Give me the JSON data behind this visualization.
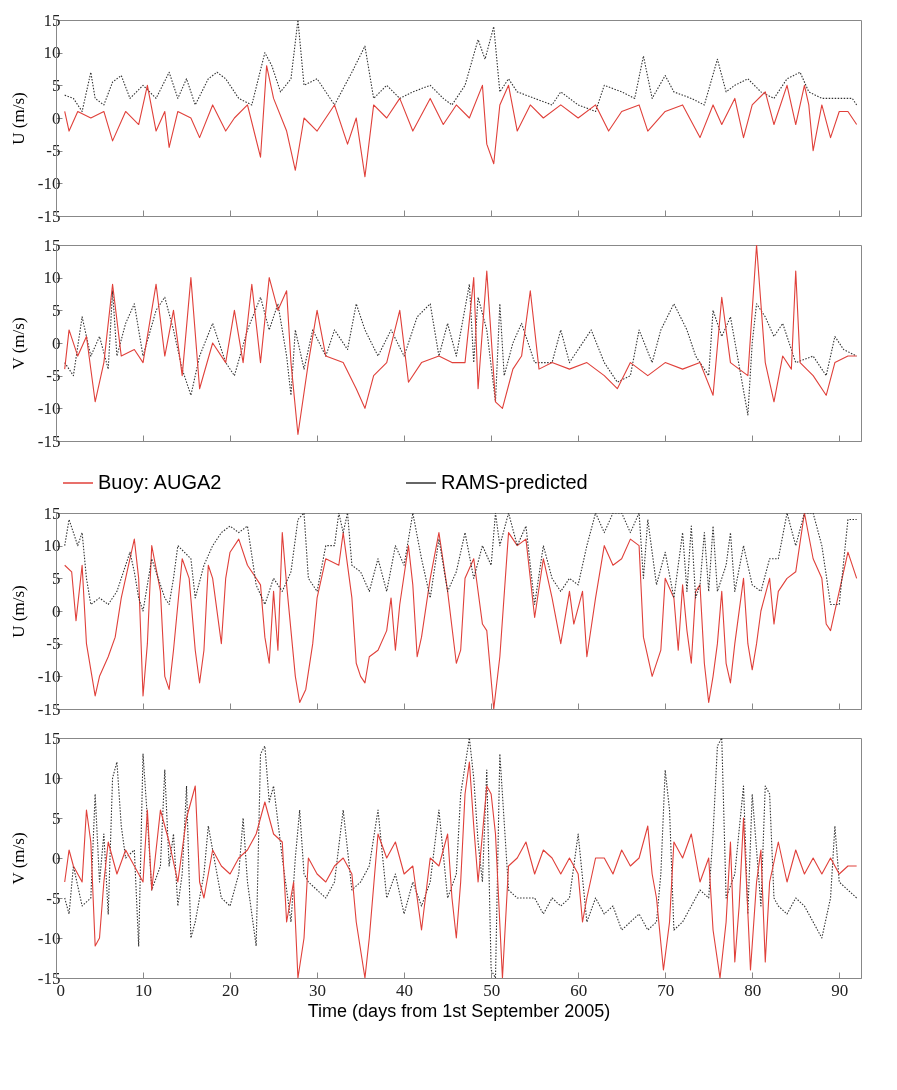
{
  "chart_data": [
    {
      "type": "line",
      "ylabel": "U (m/s)",
      "xlim": [
        0,
        92.5
      ],
      "xticks": [
        0,
        10,
        20,
        30,
        40,
        50,
        60,
        70,
        80,
        90
      ],
      "ylim": [
        -15,
        15
      ],
      "yticks": [
        -15,
        -10,
        -5,
        0,
        5,
        10,
        15
      ],
      "tick_labels": "y",
      "series": [
        {
          "color": "#333333",
          "line_style": "dotted",
          "x": [
            1,
            2,
            3,
            4,
            4.5,
            5.5,
            6.5,
            7.5,
            8.5,
            10,
            11.5,
            13,
            14,
            15,
            16,
            17.5,
            18.5,
            19.5,
            21,
            22.5,
            24,
            24.8,
            25.8,
            27,
            27.8,
            28.5,
            30,
            31,
            32,
            34,
            35.5,
            36.5,
            38,
            39.5,
            41,
            43,
            44.5,
            45.5,
            47,
            48.5,
            49.3,
            50.3,
            51,
            52,
            53,
            55,
            57,
            58,
            60,
            62,
            63,
            65,
            66.5,
            67.5,
            68.5,
            70,
            71,
            73,
            74.5,
            76,
            77,
            78,
            79.5,
            81,
            82.5,
            84,
            85.5,
            86.5,
            88,
            90,
            91.5,
            92
          ],
          "values": [
            3.5,
            3,
            1,
            7,
            3,
            2,
            5.5,
            6.5,
            3,
            5,
            3,
            7,
            3,
            6,
            2,
            6,
            7,
            6,
            3,
            2,
            10,
            8,
            4,
            6,
            15,
            5,
            6,
            4,
            2,
            7,
            11,
            3,
            5,
            3,
            4,
            5,
            3,
            2,
            5,
            12,
            9,
            14,
            4,
            6,
            4,
            3,
            2,
            4,
            2,
            1,
            5,
            4,
            3,
            9.5,
            3,
            6.5,
            4,
            3,
            2,
            9,
            4,
            5,
            6,
            4,
            3,
            6,
            7,
            4,
            3,
            3,
            3,
            2
          ]
        },
        {
          "color": "#e0403a",
          "line_style": "solid",
          "x": [
            1,
            1.5,
            2.5,
            4,
            5.5,
            6.5,
            8,
            9.5,
            10.5,
            11.5,
            12.5,
            13,
            14,
            15.5,
            16.5,
            18,
            19.5,
            20.5,
            22,
            23.5,
            24.2,
            25,
            26.5,
            27.5,
            28.5,
            30,
            32,
            33.5,
            34.5,
            35.5,
            36.5,
            38,
            39.5,
            41,
            43,
            44.5,
            46,
            47.5,
            49,
            49.5,
            50.3,
            51,
            52,
            53,
            54.5,
            56,
            58,
            60,
            62,
            63.5,
            65,
            67,
            68,
            70,
            72,
            74,
            75.5,
            76.5,
            78,
            79,
            80,
            81.5,
            82.5,
            84,
            85,
            86,
            86.5,
            87,
            88,
            89,
            90,
            91,
            92
          ],
          "values": [
            1,
            -2,
            1,
            0,
            1,
            -3.5,
            1,
            -1,
            5,
            -2,
            1,
            -4.5,
            1,
            0,
            -3,
            2,
            -2,
            0,
            2,
            -6,
            8,
            3,
            -2,
            -8,
            0,
            -2,
            2,
            -4,
            0,
            -9,
            2,
            0,
            3,
            -2,
            3,
            -1,
            2,
            0,
            5,
            -4,
            -7,
            2,
            5,
            -2,
            2,
            0,
            2,
            0,
            2,
            -2,
            1,
            2,
            -2,
            1,
            2,
            -3,
            2,
            -1,
            3,
            -3,
            2,
            4,
            -1,
            5,
            -1,
            5,
            2,
            -5,
            2,
            -3,
            1,
            1,
            -1
          ]
        }
      ]
    },
    {
      "type": "line",
      "ylabel": "V (m/s)",
      "xlim": [
        0,
        92.5
      ],
      "xticks": [
        0,
        10,
        20,
        30,
        40,
        50,
        60,
        70,
        80,
        90
      ],
      "ylim": [
        -15,
        15
      ],
      "yticks": [
        -15,
        -10,
        -5,
        0,
        5,
        10,
        15
      ],
      "tick_labels": "y",
      "series": [
        {
          "color": "#333333",
          "line_style": "dotted",
          "x": [
            1,
            2,
            3,
            4,
            5,
            6,
            6.5,
            7,
            8,
            9,
            10,
            11.5,
            12.5,
            13.5,
            14.5,
            15.5,
            16.5,
            18,
            19.5,
            20.5,
            22,
            23.5,
            24.5,
            25.5,
            26.5,
            27,
            27.5,
            28.5,
            29.5,
            31,
            32,
            33.5,
            34.5,
            35.5,
            37,
            38.5,
            40,
            41.5,
            43,
            44,
            45,
            46,
            47.5,
            48,
            48.5,
            49.5,
            50.5,
            51,
            51.5,
            52.5,
            53.5,
            55,
            57,
            58,
            59,
            60,
            61.5,
            63,
            64.5,
            66,
            67,
            68.5,
            69.5,
            71,
            72.5,
            73.5,
            75,
            75.5,
            76.5,
            77.5,
            79.5,
            80,
            80.5,
            81.5,
            82.5,
            83.5,
            85,
            87,
            88.5,
            89.5,
            90.5,
            92
          ],
          "values": [
            -3,
            -5,
            4,
            -2,
            1,
            -4,
            8,
            -2,
            3,
            6,
            -2,
            5,
            7,
            2,
            -4,
            -8,
            -2,
            3,
            -3,
            -5,
            2,
            7,
            2,
            6,
            -2,
            -8,
            2,
            -4,
            2,
            -2,
            2,
            -1,
            6,
            2,
            -2,
            2,
            -2,
            4,
            6,
            -2,
            3,
            -2,
            9,
            -3,
            7,
            2,
            -9,
            6,
            -5,
            0,
            3,
            -3,
            -3,
            2,
            -3,
            -1,
            2,
            -3,
            -6,
            -5,
            2,
            -3,
            2,
            6,
            2,
            -2,
            -5,
            5,
            1,
            4,
            -11,
            0,
            6,
            4,
            1,
            3,
            -3,
            -2,
            -5,
            1,
            -1,
            -2
          ]
        },
        {
          "color": "#e0403a",
          "line_style": "solid",
          "x": [
            1,
            1.5,
            2.5,
            3.5,
            4.5,
            5.5,
            6.5,
            7.5,
            9,
            10,
            11.5,
            12.5,
            13.5,
            14.5,
            15.5,
            16.5,
            18,
            19.5,
            20.5,
            21.5,
            22.5,
            23.5,
            24.5,
            25.5,
            26.5,
            27,
            27.8,
            29,
            30,
            31,
            33,
            34.5,
            35.5,
            36.5,
            38,
            39.5,
            40.5,
            42,
            44,
            45.5,
            47,
            48,
            48.5,
            49.5,
            50.5,
            51.3,
            52.5,
            53.5,
            54.5,
            55.5,
            57,
            59,
            61,
            63,
            64.5,
            66,
            68,
            70,
            72,
            74,
            75.5,
            76.5,
            77.5,
            79.5,
            80.5,
            81.5,
            82.5,
            83.5,
            84.5,
            85,
            85.5,
            87,
            88.5,
            89.5,
            91,
            92
          ],
          "values": [
            -4,
            2,
            -2,
            1,
            -9,
            -3,
            9,
            -2,
            -1,
            -3,
            9,
            -2,
            5,
            -5,
            10,
            -7,
            0,
            -3,
            5,
            -3,
            9,
            -3,
            10,
            5,
            8,
            -3,
            -14,
            -3,
            5,
            -2,
            -3,
            -7,
            -10,
            -5,
            -3,
            5,
            -6,
            -3,
            -2,
            -3,
            -3,
            10,
            -7,
            11,
            -9,
            -10,
            -4,
            -2,
            8,
            -4,
            -3,
            -4,
            -3,
            -5,
            -7,
            -3,
            -5,
            -3,
            -4,
            -3,
            -8,
            7,
            -3,
            -5,
            15,
            -3,
            -9,
            -2,
            -4,
            11,
            -3,
            -5,
            -8,
            -3,
            -2,
            -2
          ]
        }
      ]
    },
    {
      "type": "line",
      "ylabel": "U (m/s)",
      "xlim": [
        0,
        92.5
      ],
      "xticks": [
        0,
        10,
        20,
        30,
        40,
        50,
        60,
        70,
        80,
        90
      ],
      "ylim": [
        -15,
        15
      ],
      "yticks": [
        -15,
        -10,
        -5,
        0,
        5,
        10,
        15
      ],
      "tick_labels": "y",
      "legend": "top",
      "series": [
        {
          "name": "Buoy: AUGA2",
          "color": "#e0403a",
          "line_style": "solid",
          "x": [
            1,
            1.8,
            2.3,
            3,
            3.5,
            4.5,
            5,
            6,
            6.8,
            7.5,
            8.5,
            9,
            9.5,
            10,
            10.5,
            11,
            12,
            12.5,
            13,
            13.5,
            14.5,
            15.3,
            16,
            16.5,
            17,
            17.5,
            18,
            19,
            19.5,
            20,
            21,
            22,
            23.5,
            24,
            24.5,
            25,
            25.5,
            26,
            26.5,
            27.5,
            28,
            28.7,
            29.5,
            30,
            31,
            32.5,
            33,
            34,
            34.5,
            35,
            35.5,
            36,
            37,
            38,
            38.5,
            39,
            39.5,
            40.5,
            41,
            41.5,
            42,
            43,
            44,
            45,
            46,
            46.5,
            47,
            48,
            49,
            49.5,
            50.3,
            51,
            52,
            53,
            54,
            55,
            56,
            57,
            58,
            59,
            59.5,
            60.5,
            61,
            62,
            63,
            64,
            65,
            66,
            67,
            67.5,
            68.5,
            69.5,
            70,
            71,
            71.5,
            72,
            72.5,
            73,
            73.5,
            74,
            74.5,
            75,
            75.5,
            76,
            76.5,
            77,
            77.5,
            78,
            79,
            79.5,
            80,
            80.5,
            81,
            82,
            82.5,
            83,
            84,
            85,
            86,
            87,
            88,
            88.5,
            89,
            90,
            91,
            92
          ],
          "values": [
            7,
            6,
            -1.5,
            7,
            -5,
            -13,
            -10,
            -7,
            -4,
            2,
            8,
            11,
            5,
            -13,
            -5,
            10,
            3,
            -10,
            -12,
            -6,
            8,
            5,
            -6,
            -11,
            -6,
            7,
            5,
            -5,
            5,
            9,
            11,
            7,
            4,
            -4,
            -8,
            3,
            -6,
            12,
            4,
            -10,
            -14,
            -12,
            -5,
            2,
            8,
            7,
            12,
            2,
            -8,
            -10,
            -11,
            -7,
            -6,
            -3,
            2,
            -6,
            1,
            10,
            4,
            -7,
            -4,
            5,
            12,
            3,
            -8,
            -6,
            5,
            8,
            -2,
            -3,
            -15,
            -7,
            12,
            10,
            11,
            -1,
            8,
            2,
            -5,
            3,
            -2,
            3,
            -7,
            2,
            10,
            7,
            8,
            11,
            10,
            -4,
            -10,
            -6,
            5,
            2,
            -6,
            4,
            -3,
            -8,
            3,
            4,
            -8,
            -14,
            -10,
            -5,
            3,
            -8,
            -11,
            -5,
            5,
            -5,
            -9,
            -5,
            0,
            5,
            -2,
            3,
            5,
            6,
            15,
            8,
            5,
            -2,
            -3,
            3,
            9,
            5
          ]
        },
        {
          "name": "RAMS-predicted",
          "color": "#333333",
          "line_style": "dotted",
          "x": [
            1,
            1.5,
            2,
            2.5,
            3,
            3.5,
            4,
            5,
            6,
            7,
            7.5,
            8.5,
            9,
            9.5,
            10,
            11,
            12.5,
            13,
            13.5,
            14,
            15.5,
            16,
            17,
            18,
            19,
            20,
            21,
            22,
            23,
            24,
            25,
            26,
            27,
            27.8,
            28.5,
            29,
            30,
            31,
            32,
            32.5,
            33,
            33.5,
            34,
            35,
            36,
            37,
            38,
            39,
            40,
            41,
            42,
            43,
            44,
            45,
            46,
            47,
            48,
            49,
            50,
            50.5,
            51,
            52,
            53,
            54,
            55,
            56,
            57,
            58,
            59,
            60,
            61,
            62,
            63,
            64,
            65,
            66,
            67,
            67.5,
            68,
            69,
            70,
            71,
            72,
            72.5,
            73,
            73.5,
            74,
            74.5,
            75,
            75.5,
            76,
            77,
            77.5,
            78,
            79,
            80,
            81,
            82,
            83,
            84,
            85,
            86,
            87,
            88,
            89,
            90,
            91,
            92
          ],
          "values": [
            10,
            14,
            12,
            10,
            12,
            5,
            1,
            2,
            1,
            3,
            5,
            9,
            6,
            2,
            0,
            8,
            2,
            1,
            5,
            10,
            8,
            2,
            7,
            10,
            12,
            13,
            12,
            13,
            4,
            1,
            5,
            3,
            6,
            14,
            15,
            5,
            3,
            10,
            10,
            15,
            12,
            15,
            7,
            6,
            3,
            8,
            3,
            10,
            7,
            15,
            8,
            2,
            11,
            3,
            6,
            12,
            5,
            10,
            7,
            15,
            10,
            15,
            10,
            13,
            1,
            10,
            5,
            3,
            5,
            4,
            10,
            15,
            12,
            15,
            15,
            12,
            15,
            5,
            14,
            4,
            9,
            2,
            12,
            3,
            13,
            2,
            4,
            12,
            3,
            13,
            3,
            7,
            12,
            3,
            10,
            4,
            3,
            8,
            8,
            15,
            10,
            15,
            15,
            10,
            1,
            1,
            14,
            14
          ]
        }
      ]
    },
    {
      "type": "line",
      "ylabel": "V (m/s)",
      "xlabel": "Time (days from 1st September 2005)",
      "xlim": [
        0,
        92.5
      ],
      "xticks": [
        0,
        10,
        20,
        30,
        40,
        50,
        60,
        70,
        80,
        90
      ],
      "ylim": [
        -15,
        15
      ],
      "yticks": [
        -15,
        -10,
        -5,
        0,
        5,
        10,
        15
      ],
      "series": [
        {
          "color": "#333333",
          "line_style": "dotted",
          "x": [
            1,
            1.5,
            2,
            3,
            4,
            4.5,
            5,
            5.5,
            6,
            6.5,
            7,
            7.5,
            8,
            9,
            9.5,
            10,
            10.5,
            11,
            12,
            12.5,
            13,
            13.5,
            14,
            14.5,
            15,
            15.5,
            16,
            17,
            17.5,
            18,
            19,
            20,
            21,
            21.5,
            22,
            23,
            23.5,
            24,
            24.5,
            25,
            26,
            27,
            27.5,
            28,
            28.5,
            29,
            30,
            31,
            32,
            33,
            34,
            35,
            36,
            37,
            38,
            39,
            40,
            41,
            42,
            43,
            44,
            45,
            46,
            46.5,
            47.5,
            48,
            48.5,
            49,
            49.5,
            50,
            50.5,
            51,
            52,
            53,
            54,
            55,
            56,
            57,
            58,
            59,
            60,
            61,
            62,
            63,
            64,
            65,
            66,
            67,
            68,
            69,
            69.5,
            70,
            70.5,
            71,
            72,
            73,
            74,
            75,
            75.5,
            76,
            76.5,
            77,
            78,
            79,
            79.5,
            80,
            81,
            81.5,
            82,
            82.5,
            83,
            84,
            85,
            86,
            87,
            88,
            89,
            89.5,
            90,
            91,
            92
          ],
          "values": [
            -5,
            -7,
            -1,
            -6,
            -5,
            8,
            -3,
            3,
            -7,
            10,
            12,
            4,
            0,
            1,
            -11,
            13,
            5,
            -4,
            -1,
            11,
            -1,
            3,
            -6,
            -2,
            9,
            -10,
            -8,
            -2,
            4,
            1,
            -5,
            -6,
            -2,
            5,
            -3,
            -11,
            13,
            14,
            7,
            9,
            0,
            -8,
            0,
            6,
            -2,
            -3,
            -4,
            -5,
            -3,
            6,
            -4,
            -3,
            -1,
            6,
            -5,
            -2,
            -7,
            -3,
            -6,
            -3,
            6,
            -5,
            -2,
            8,
            15,
            10,
            2,
            -3,
            11,
            -14,
            -15,
            13,
            -4,
            -5,
            -5,
            -5,
            -7,
            -5,
            -6,
            -5,
            3,
            -8,
            -5,
            -7,
            -6,
            -9,
            -8,
            -7,
            -9,
            -8,
            -2,
            11,
            6,
            -9,
            -8,
            -6,
            -4,
            -5,
            3,
            14,
            15,
            -5,
            -2,
            9,
            -7,
            8,
            -6,
            9,
            8,
            -5,
            -6,
            -7,
            -5,
            -6,
            -8,
            -10,
            -5,
            4,
            -3,
            -4,
            -5
          ]
        },
        {
          "color": "#e0403a",
          "line_style": "solid",
          "x": [
            1,
            1.5,
            2,
            3,
            3.5,
            4,
            4.5,
            5,
            5.5,
            6,
            7,
            8,
            9,
            10,
            10.5,
            11,
            12,
            13,
            14,
            15,
            16,
            16.5,
            17,
            18,
            19,
            20,
            21,
            22,
            23,
            24,
            25,
            26,
            26.5,
            27.3,
            27.8,
            28.5,
            29,
            30,
            31,
            32,
            33,
            34,
            34.5,
            35.5,
            36,
            37,
            38,
            39,
            40,
            41,
            42,
            43,
            44,
            45,
            45.5,
            46,
            46.5,
            47,
            47.5,
            48,
            48.5,
            49.5,
            50,
            50.5,
            51.3,
            52,
            53,
            54,
            55,
            56,
            57,
            58,
            59,
            60,
            60.5,
            61,
            62,
            63,
            64,
            65,
            66,
            67,
            68,
            68.5,
            69,
            69.8,
            70.5,
            71,
            72,
            73,
            74,
            75,
            75.5,
            76.3,
            77,
            77.5,
            78,
            78.5,
            79,
            79.8,
            80.5,
            81,
            81.5,
            82,
            83,
            84,
            85,
            86,
            87,
            88,
            89,
            90,
            91,
            92
          ],
          "values": [
            -3,
            1,
            -1,
            -3,
            6,
            2,
            -11,
            -10,
            -3,
            2,
            -2,
            1,
            -1,
            -3,
            6,
            -4,
            6,
            2,
            -3,
            5,
            9,
            -3,
            -5,
            1,
            -1,
            -2,
            0,
            1,
            3,
            7,
            3,
            2,
            -8,
            -3,
            -15,
            -10,
            0,
            -2,
            -3,
            -1,
            0,
            -2,
            -8,
            -15,
            -10,
            3,
            0,
            2,
            -2,
            -1,
            -9,
            0,
            -1,
            3,
            -5,
            -10,
            -3,
            8,
            12,
            4,
            -3,
            9,
            8,
            3,
            -15,
            -1,
            0,
            2,
            -2,
            1,
            0,
            -2,
            0,
            -2,
            -8,
            -5,
            0,
            0,
            -2,
            1,
            -1,
            0,
            4,
            -2,
            -5,
            -14,
            -8,
            2,
            0,
            3,
            -3,
            0,
            -9,
            -15,
            -8,
            2,
            -13,
            -6,
            5,
            -14,
            -3,
            1,
            -13,
            -3,
            2,
            -3,
            1,
            -2,
            0,
            -2,
            0,
            -2,
            -1,
            -1
          ]
        }
      ]
    }
  ]
}
